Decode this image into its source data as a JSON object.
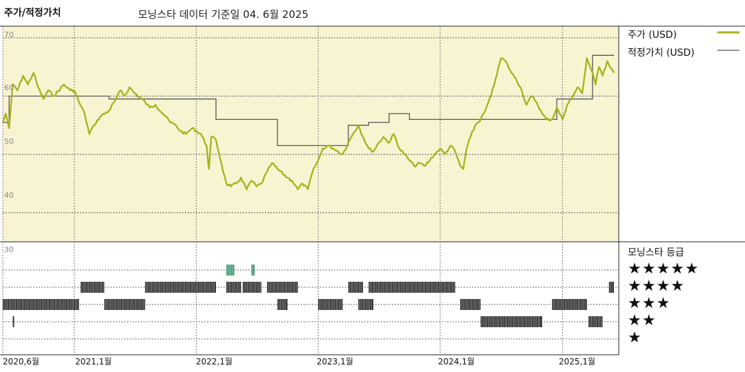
{
  "header": {
    "title": "주가/적정가치",
    "subtitle": "모닝스타 데이터 기준일 04. 6월 2025"
  },
  "legend": {
    "price": "주가 (USD)",
    "fair_value": "적정가치 (USD)",
    "price_color": "#a8b320",
    "fair_value_color": "#555555"
  },
  "rating_panel": {
    "title": "모닝스타 등급",
    "stars": [
      "★★★★★",
      "★★★★",
      "★★★",
      "★★",
      "★"
    ],
    "ticks": [
      "30"
    ]
  },
  "colors": {
    "plot_bg": "#f8f4d2",
    "five_star": "#4aa07a",
    "bar": "#333333"
  },
  "chart_data": {
    "type": "line",
    "ylim": [
      35,
      72
    ],
    "yticks": [
      "70",
      "60",
      "50",
      "40"
    ],
    "x_range": [
      "2020-06-01",
      "2025-06-04"
    ],
    "x_tick_labels": [
      "2020,6월",
      "2021,1월",
      "2022,1월",
      "2023,1월",
      "2024,1월",
      "2025,1월"
    ],
    "x_tick_dates": [
      "2020-06-01",
      "2021-01-01",
      "2022-01-01",
      "2023-01-01",
      "2024-01-01",
      "2025-01-01"
    ],
    "series": [
      {
        "name": "주가 (USD)",
        "points": [
          [
            "2020-06-01",
            55.5
          ],
          [
            "2020-06-10",
            57
          ],
          [
            "2020-06-20",
            54.5
          ],
          [
            "2020-07-01",
            62
          ],
          [
            "2020-07-15",
            61
          ],
          [
            "2020-08-01",
            63.5
          ],
          [
            "2020-08-15",
            62
          ],
          [
            "2020-09-01",
            64
          ],
          [
            "2020-09-15",
            61.5
          ],
          [
            "2020-10-01",
            59.5
          ],
          [
            "2020-10-15",
            61
          ],
          [
            "2020-11-01",
            60
          ],
          [
            "2020-12-01",
            62
          ],
          [
            "2020-12-20",
            61
          ],
          [
            "2021-01-01",
            61
          ],
          [
            "2021-01-15",
            59
          ],
          [
            "2021-02-01",
            57
          ],
          [
            "2021-02-15",
            53.5
          ],
          [
            "2021-03-01",
            55
          ],
          [
            "2021-03-20",
            56.5
          ],
          [
            "2021-04-15",
            57.5
          ],
          [
            "2021-05-01",
            59
          ],
          [
            "2021-05-20",
            61
          ],
          [
            "2021-06-01",
            60
          ],
          [
            "2021-06-15",
            61.5
          ],
          [
            "2021-07-01",
            60.5
          ],
          [
            "2021-08-01",
            59
          ],
          [
            "2021-08-15",
            58
          ],
          [
            "2021-09-01",
            58.5
          ],
          [
            "2021-10-01",
            56.5
          ],
          [
            "2021-10-15",
            55.5
          ],
          [
            "2021-11-01",
            55
          ],
          [
            "2021-11-15",
            54
          ],
          [
            "2021-12-01",
            53.5
          ],
          [
            "2021-12-20",
            54.5
          ],
          [
            "2022-01-15",
            53.5
          ],
          [
            "2022-02-01",
            51.5
          ],
          [
            "2022-02-08",
            47.5
          ],
          [
            "2022-02-15",
            53
          ],
          [
            "2022-03-01",
            52.5
          ],
          [
            "2022-03-15",
            49
          ],
          [
            "2022-04-01",
            45
          ],
          [
            "2022-04-15",
            44.5
          ],
          [
            "2022-05-01",
            45
          ],
          [
            "2022-05-15",
            46
          ],
          [
            "2022-06-01",
            44
          ],
          [
            "2022-06-15",
            45.5
          ],
          [
            "2022-07-01",
            44.5
          ],
          [
            "2022-07-15",
            45
          ],
          [
            "2022-08-01",
            47
          ],
          [
            "2022-08-15",
            48.5
          ],
          [
            "2022-09-01",
            47.5
          ],
          [
            "2022-10-01",
            46
          ],
          [
            "2022-10-15",
            45.5
          ],
          [
            "2022-11-01",
            44
          ],
          [
            "2022-11-15",
            45
          ],
          [
            "2022-12-01",
            44
          ],
          [
            "2022-12-15",
            47
          ],
          [
            "2023-01-01",
            49
          ],
          [
            "2023-01-15",
            51
          ],
          [
            "2023-02-01",
            51.5
          ],
          [
            "2023-02-15",
            51
          ],
          [
            "2023-03-01",
            50.5
          ],
          [
            "2023-03-15",
            50
          ],
          [
            "2023-04-01",
            52
          ],
          [
            "2023-04-15",
            53.5
          ],
          [
            "2023-05-01",
            55
          ],
          [
            "2023-05-15",
            53
          ],
          [
            "2023-06-01",
            51
          ],
          [
            "2023-06-15",
            50.5
          ],
          [
            "2023-07-01",
            52
          ],
          [
            "2023-07-15",
            53
          ],
          [
            "2023-08-01",
            52
          ],
          [
            "2023-08-15",
            53.5
          ],
          [
            "2023-09-01",
            51
          ],
          [
            "2023-10-01",
            49
          ],
          [
            "2023-10-15",
            48
          ],
          [
            "2023-11-01",
            48.5
          ],
          [
            "2023-11-15",
            48
          ],
          [
            "2023-12-01",
            49
          ],
          [
            "2023-12-15",
            50
          ],
          [
            "2024-01-01",
            51
          ],
          [
            "2024-01-15",
            50
          ],
          [
            "2024-02-01",
            51.5
          ],
          [
            "2024-02-15",
            50.5
          ],
          [
            "2024-03-01",
            48
          ],
          [
            "2024-03-10",
            47.5
          ],
          [
            "2024-03-20",
            51
          ],
          [
            "2024-04-01",
            53
          ],
          [
            "2024-04-15",
            55
          ],
          [
            "2024-05-01",
            56
          ],
          [
            "2024-05-15",
            57.5
          ],
          [
            "2024-06-01",
            60
          ],
          [
            "2024-06-15",
            63
          ],
          [
            "2024-07-01",
            66.5
          ],
          [
            "2024-07-15",
            66
          ],
          [
            "2024-08-01",
            64
          ],
          [
            "2024-08-15",
            63
          ],
          [
            "2024-09-01",
            61
          ],
          [
            "2024-09-15",
            58.5
          ],
          [
            "2024-10-01",
            60
          ],
          [
            "2024-10-15",
            59
          ],
          [
            "2024-11-01",
            57
          ],
          [
            "2024-11-15",
            56
          ],
          [
            "2024-12-01",
            56
          ],
          [
            "2024-12-15",
            58
          ],
          [
            "2025-01-01",
            56
          ],
          [
            "2025-01-15",
            58.5
          ],
          [
            "2025-02-01",
            60
          ],
          [
            "2025-02-15",
            61.5
          ],
          [
            "2025-03-01",
            60.5
          ],
          [
            "2025-03-15",
            66.5
          ],
          [
            "2025-04-01",
            64
          ],
          [
            "2025-04-10",
            62
          ],
          [
            "2025-04-20",
            65
          ],
          [
            "2025-05-01",
            63.5
          ],
          [
            "2025-05-15",
            66
          ],
          [
            "2025-06-04",
            64
          ]
        ]
      },
      {
        "name": "적정가치 (USD)",
        "points": [
          [
            "2020-06-01",
            55.5
          ],
          [
            "2020-06-20",
            55.5
          ],
          [
            "2020-06-20",
            60
          ],
          [
            "2021-04-15",
            60
          ],
          [
            "2021-04-15",
            59.5
          ],
          [
            "2022-03-01",
            59.5
          ],
          [
            "2022-03-01",
            56
          ],
          [
            "2022-09-01",
            56
          ],
          [
            "2022-09-01",
            51.5
          ],
          [
            "2023-04-01",
            51.5
          ],
          [
            "2023-04-01",
            55
          ],
          [
            "2023-06-01",
            55
          ],
          [
            "2023-06-01",
            55.5
          ],
          [
            "2023-08-01",
            55.5
          ],
          [
            "2023-08-01",
            57
          ],
          [
            "2023-10-01",
            57
          ],
          [
            "2023-10-01",
            56
          ],
          [
            "2024-12-15",
            56
          ],
          [
            "2024-12-15",
            59.5
          ],
          [
            "2025-04-01",
            59.5
          ],
          [
            "2025-04-01",
            67
          ],
          [
            "2025-06-04",
            67
          ]
        ]
      }
    ],
    "rating_bars": [
      {
        "stars": 5,
        "segments": [
          [
            "2022-04-01",
            "2022-04-25"
          ],
          [
            "2022-06-15",
            "2022-06-25"
          ]
        ]
      },
      {
        "stars": 4,
        "segments": [
          [
            "2021-01-20",
            "2021-04-01"
          ],
          [
            "2021-08-01",
            "2022-03-01"
          ],
          [
            "2022-04-01",
            "2022-05-15"
          ],
          [
            "2022-05-20",
            "2022-07-15"
          ],
          [
            "2022-08-01",
            "2022-11-01"
          ],
          [
            "2023-04-01",
            "2023-05-15"
          ],
          [
            "2023-06-01",
            "2024-02-15"
          ],
          [
            "2025-05-20",
            "2025-06-04"
          ]
        ]
      },
      {
        "stars": 3,
        "segments": [
          [
            "2020-06-01",
            "2021-01-15"
          ],
          [
            "2021-04-01",
            "2021-08-01"
          ],
          [
            "2022-09-01",
            "2022-10-01"
          ],
          [
            "2023-01-01",
            "2023-03-15"
          ],
          [
            "2023-05-01",
            "2023-06-15"
          ],
          [
            "2024-03-01",
            "2024-05-01"
          ],
          [
            "2024-12-01",
            "2025-03-15"
          ]
        ]
      },
      {
        "stars": 2,
        "segments": [
          [
            "2020-07-01",
            "2020-07-05"
          ],
          [
            "2024-05-01",
            "2024-11-01"
          ],
          [
            "2025-03-20",
            "2025-05-01"
          ]
        ]
      }
    ]
  }
}
